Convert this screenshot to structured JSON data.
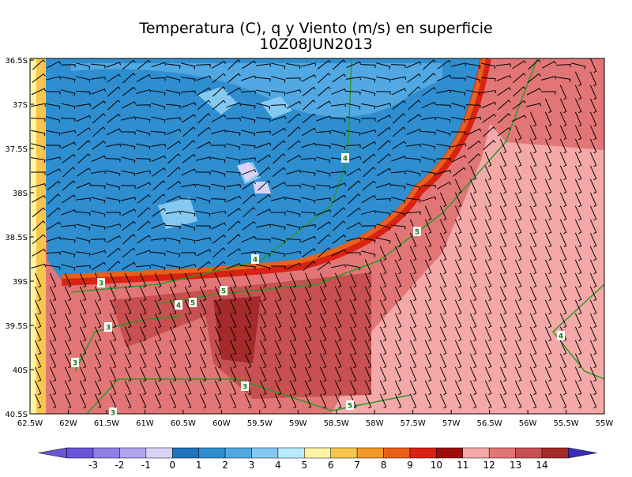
{
  "header": {
    "title": "Temperatura (C), q y Viento (m/s) en superficie",
    "subtitle": "10Z08JUN2013"
  },
  "map": {
    "lat_labels": [
      "36.5S",
      "37S",
      "37.5S",
      "38S",
      "38.5S",
      "39S",
      "39.5S",
      "40S",
      "40.5S"
    ],
    "lon_labels": [
      "62.5W",
      "62W",
      "61.5W",
      "61W",
      "60.5W",
      "60W",
      "59.5W",
      "59W",
      "58.5W",
      "58W",
      "57.5W",
      "57W",
      "56.5W",
      "56W",
      "55.5W",
      "55W"
    ],
    "contour_labels": [
      "4",
      "5",
      "4",
      "3",
      "5",
      "4",
      "5",
      "3",
      "4",
      "3",
      "3",
      "5",
      "3"
    ]
  },
  "colorbar": {
    "levels": [
      -3,
      -2,
      -1,
      0,
      1,
      2,
      3,
      4,
      5,
      6,
      7,
      8,
      9,
      10,
      11,
      12,
      13,
      14
    ],
    "colors": [
      "#6a55d8",
      "#8f7fe6",
      "#b0a4ee",
      "#d8d2f6",
      "#1f74bd",
      "#2f8ed0",
      "#52a8e2",
      "#86c9f0",
      "#b8ebff",
      "#fff3a6",
      "#f8c64c",
      "#f19a2a",
      "#e8611a",
      "#d82214",
      "#a00c0c",
      "#f4a8a8",
      "#e27676",
      "#c85050",
      "#a52a2a",
      "#3b2bb8"
    ]
  }
}
